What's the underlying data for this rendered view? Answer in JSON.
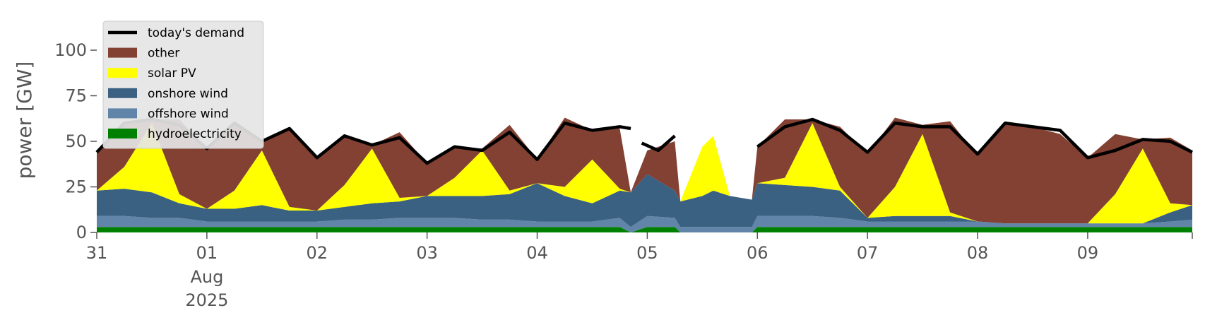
{
  "chart_data": {
    "type": "area",
    "ylabel": "power [GW]",
    "ylim": [
      0,
      120
    ],
    "yticks": [
      0,
      25,
      50,
      75,
      100
    ],
    "x_range_days": [
      0,
      9.95
    ],
    "xticks": [
      {
        "day": 0,
        "label": "31"
      },
      {
        "day": 1,
        "label": "01",
        "sub1": "Aug",
        "sub2": "2025"
      },
      {
        "day": 2,
        "label": "02"
      },
      {
        "day": 3,
        "label": "03"
      },
      {
        "day": 4,
        "label": "04"
      },
      {
        "day": 5,
        "label": "05"
      },
      {
        "day": 6,
        "label": "06"
      },
      {
        "day": 7,
        "label": "07"
      },
      {
        "day": 8,
        "label": "08"
      },
      {
        "day": 9,
        "label": "09"
      }
    ],
    "legend_position": "top-left",
    "grid": false,
    "legend": [
      {
        "name": "today's demand",
        "color": "#000000",
        "kind": "line"
      },
      {
        "name": "other",
        "color": "#824133",
        "kind": "patch"
      },
      {
        "name": "solar PV",
        "color": "#ffff00",
        "kind": "patch"
      },
      {
        "name": "onshore wind",
        "color": "#3b6182",
        "kind": "patch"
      },
      {
        "name": "offshore wind",
        "color": "#6185a8",
        "kind": "patch"
      },
      {
        "name": "hydroelectricity",
        "color": "#008000",
        "kind": "patch"
      }
    ],
    "stack_order": [
      "hydroelectricity",
      "offshore wind",
      "onshore wind",
      "solar PV",
      "other"
    ],
    "x_days": [
      0,
      0.25,
      0.5,
      0.75,
      1,
      1.25,
      1.5,
      1.75,
      2,
      2.25,
      2.5,
      2.75,
      3,
      3.25,
      3.5,
      3.75,
      4,
      4.25,
      4.5,
      4.75,
      4.85,
      5,
      5.25,
      5.3,
      5.5,
      5.6,
      5.75,
      5.95,
      6,
      6.25,
      6.5,
      6.75,
      7,
      7.25,
      7.5,
      7.75,
      8,
      8.25,
      8.5,
      8.75,
      9,
      9.25,
      9.5,
      9.75,
      9.95
    ],
    "series": [
      {
        "name": "hydroelectricity",
        "values": [
          3,
          3,
          3,
          3,
          3,
          3,
          3,
          3,
          3,
          3,
          3,
          3,
          3,
          3,
          3,
          3,
          3,
          3,
          3,
          3,
          0,
          3,
          3,
          0,
          0,
          0,
          0,
          0,
          3,
          3,
          3,
          3,
          3,
          3,
          3,
          3,
          3,
          3,
          3,
          3,
          3,
          3,
          3,
          3,
          3
        ]
      },
      {
        "name": "offshore wind",
        "values": [
          6,
          6,
          5,
          5,
          3,
          3,
          3,
          3,
          3,
          4,
          4,
          5,
          5,
          5,
          4,
          4,
          3,
          3,
          3,
          5,
          3,
          6,
          5,
          3,
          3,
          3,
          3,
          3,
          6,
          6,
          6,
          5,
          3,
          3,
          3,
          3,
          3,
          2,
          2,
          2,
          2,
          2,
          2,
          3,
          4
        ]
      },
      {
        "name": "onshore wind",
        "values": [
          14,
          15,
          14,
          8,
          7,
          7,
          9,
          6,
          6,
          7,
          9,
          9,
          12,
          12,
          13,
          14,
          21,
          14,
          10,
          15,
          19,
          23,
          15,
          14,
          17,
          20,
          17,
          15,
          18,
          17,
          16,
          15,
          2,
          3,
          3,
          3,
          0,
          0,
          0,
          0,
          0,
          0,
          0,
          5,
          8
        ]
      },
      {
        "name": "solar PV",
        "values": [
          0,
          12,
          38,
          5,
          0,
          10,
          30,
          2,
          0,
          12,
          30,
          2,
          0,
          10,
          25,
          2,
          0,
          5,
          24,
          1,
          0,
          0,
          0,
          0,
          27,
          30,
          0,
          0,
          0,
          4,
          35,
          2,
          0,
          16,
          45,
          2,
          0,
          0,
          0,
          0,
          0,
          16,
          41,
          5,
          0
        ]
      },
      {
        "name": "other",
        "values": [
          21,
          24,
          2,
          41,
          33,
          37,
          5,
          43,
          29,
          27,
          2,
          36,
          18,
          17,
          1,
          36,
          13,
          38,
          16,
          33,
          0,
          13,
          27,
          0,
          0,
          0,
          0,
          0,
          20,
          32,
          2,
          33,
          35,
          38,
          5,
          50,
          36,
          55,
          53,
          49,
          36,
          33,
          5,
          36,
          30
        ]
      }
    ],
    "demand_segments": [
      {
        "x": [
          0,
          0.25,
          0.5,
          0.75,
          1,
          1.25,
          1.5,
          1.75,
          2,
          2.25,
          2.5,
          2.75,
          3,
          3.25,
          3.5,
          3.75,
          4,
          4.25,
          4.5,
          4.75,
          4.85
        ],
        "y": [
          44,
          60,
          62,
          59,
          46,
          60,
          50,
          57,
          41,
          53,
          48,
          52,
          38,
          47,
          45,
          55,
          40,
          60,
          56,
          58,
          57
        ]
      },
      {
        "x": [
          4.95,
          5.1,
          5.25
        ],
        "y": [
          49,
          45,
          53
        ]
      },
      {
        "x": [
          6,
          6.25,
          6.5,
          6.75,
          7,
          7.25,
          7.5,
          7.75,
          8,
          8.25,
          8.5,
          8.75,
          9,
          9.25,
          9.5,
          9.75,
          9.95
        ],
        "y": [
          47,
          58,
          62,
          56,
          44,
          60,
          58,
          58,
          43,
          60,
          58,
          56,
          41,
          45,
          51,
          50,
          44
        ]
      }
    ]
  }
}
